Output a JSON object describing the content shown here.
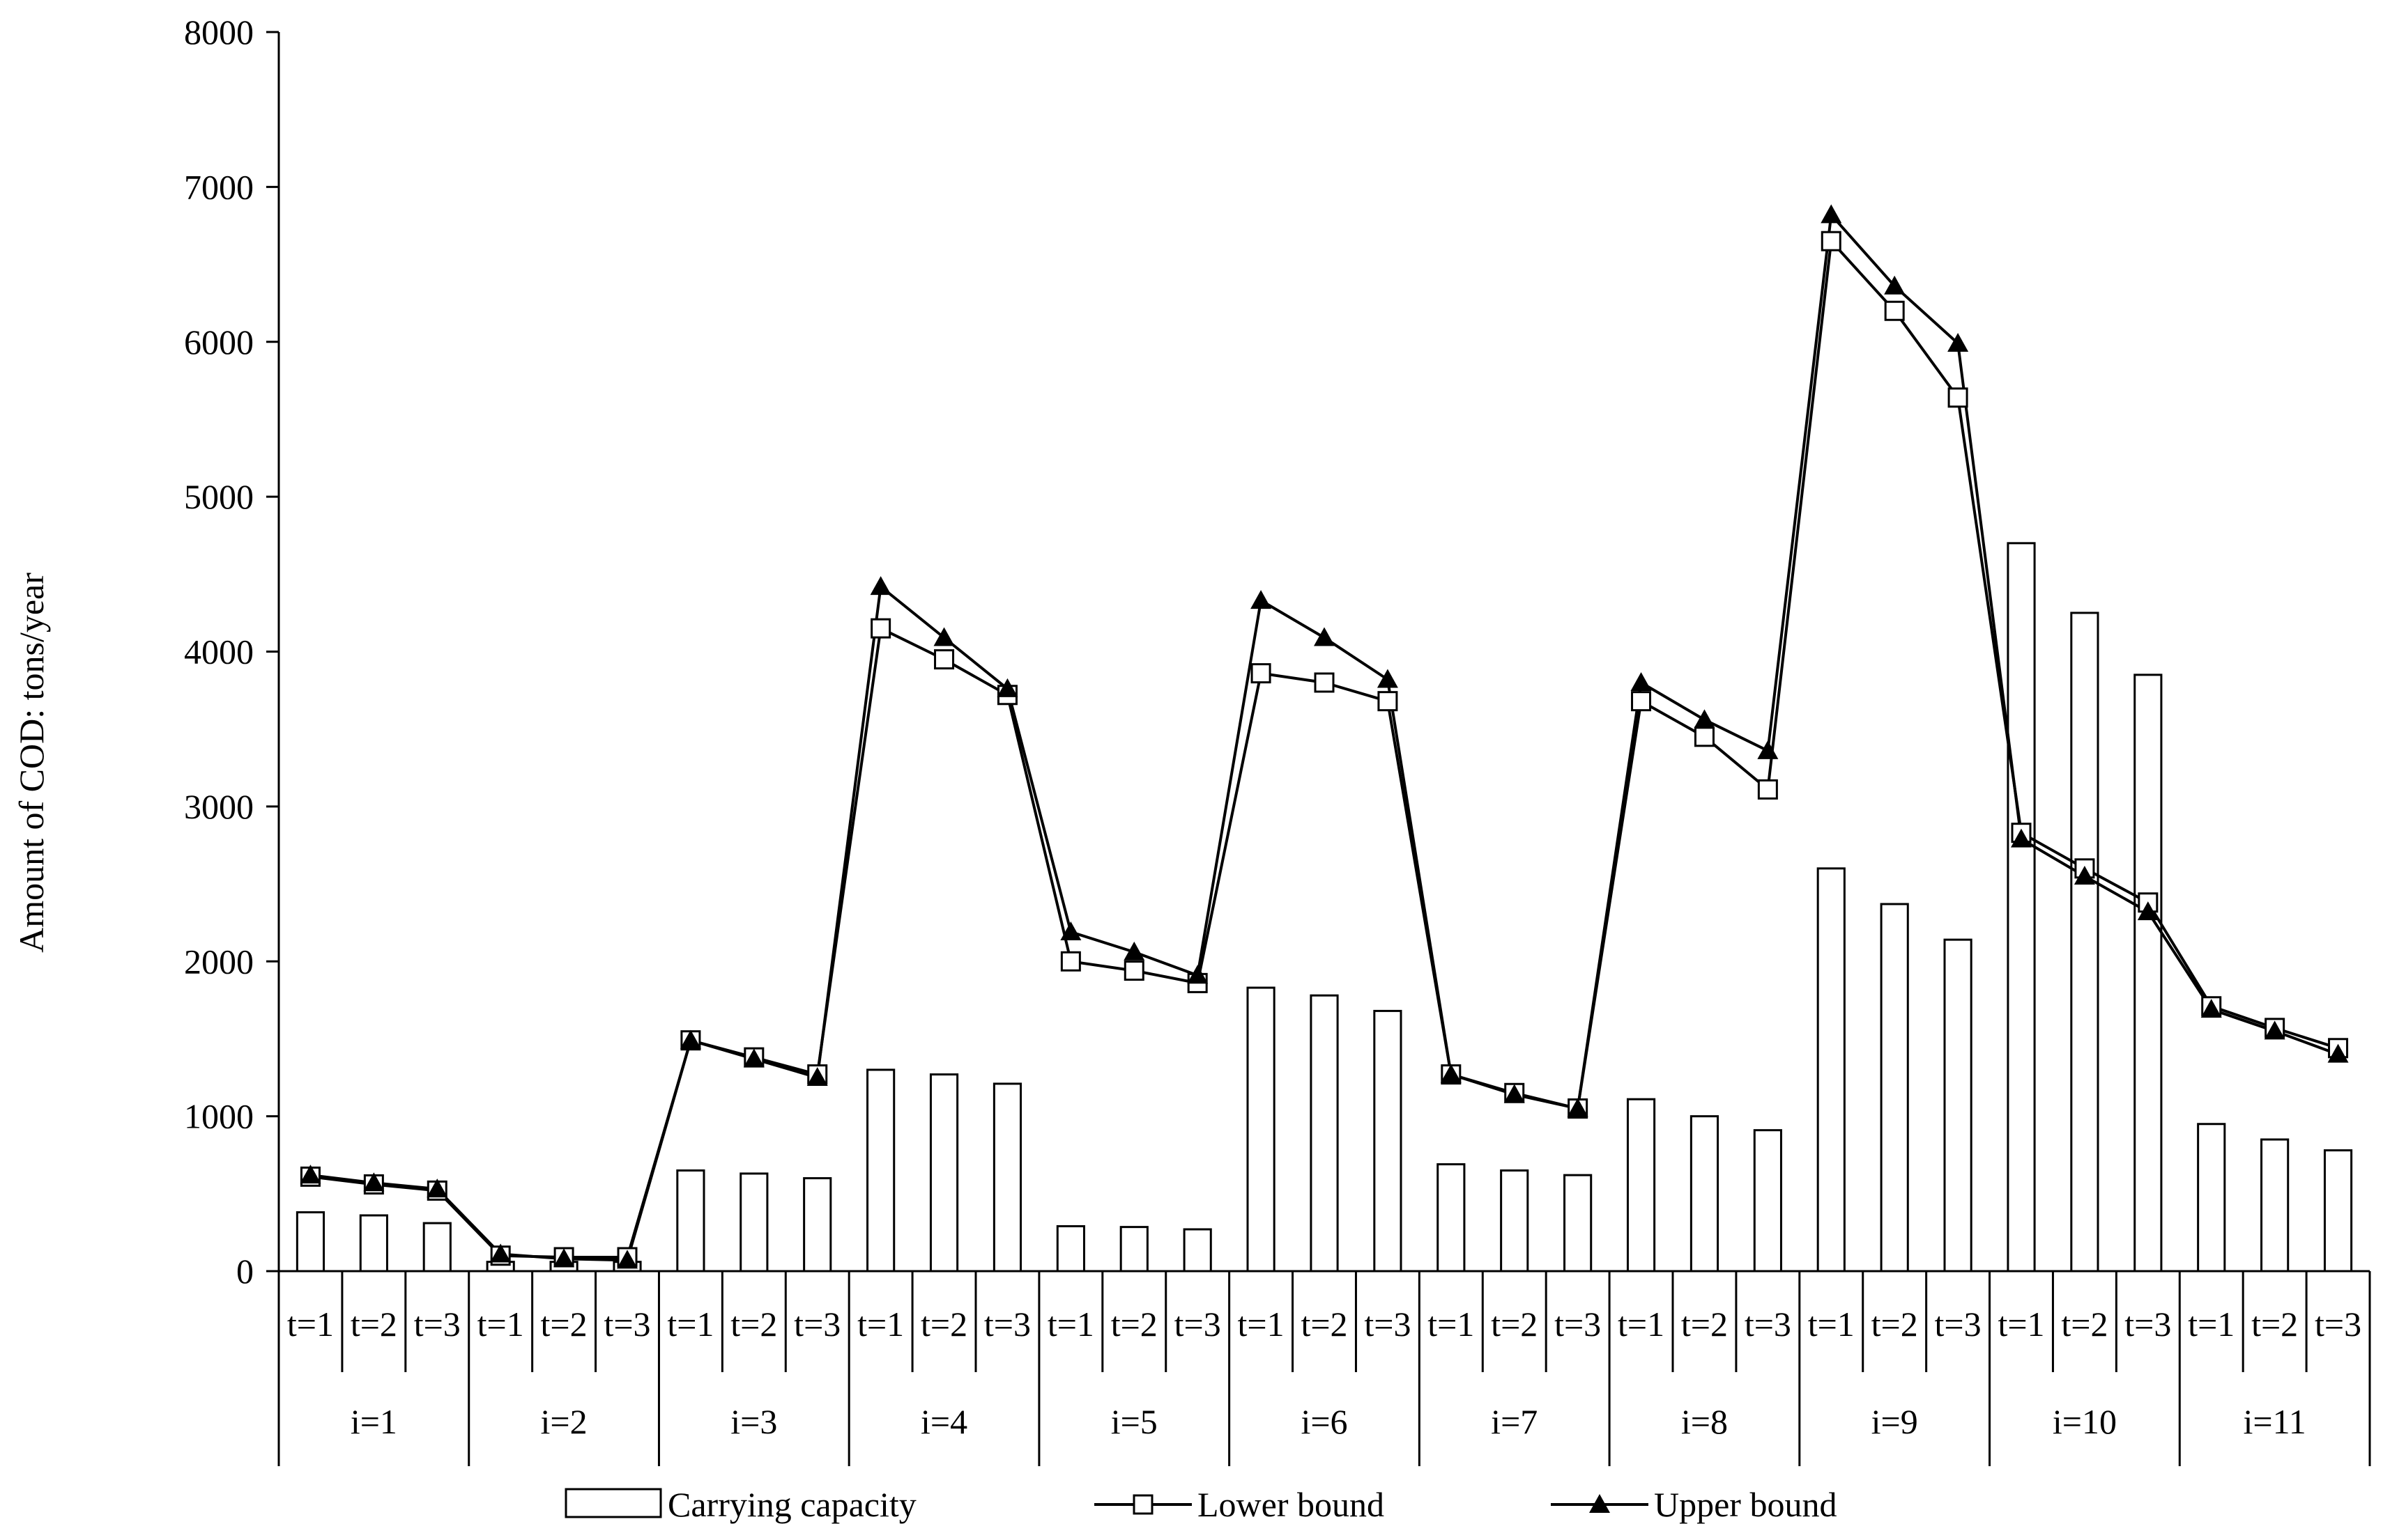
{
  "chart_data": {
    "type": "bar",
    "ylabel": "Amount of COD: tons/year",
    "ylim": [
      0,
      8000
    ],
    "yticks": [
      0,
      1000,
      2000,
      3000,
      4000,
      5000,
      6000,
      7000,
      8000
    ],
    "grid": false,
    "legend_position": "bottom",
    "groups": [
      "i=1",
      "i=2",
      "i=3",
      "i=4",
      "i=5",
      "i=6",
      "i=7",
      "i=8",
      "i=9",
      "i=10",
      "i=11"
    ],
    "periods": [
      "t=1",
      "t=2",
      "t=3"
    ],
    "series": [
      {
        "name": "Carrying capacity",
        "kind": "bar",
        "values": [
          380,
          360,
          310,
          60,
          60,
          60,
          650,
          630,
          600,
          1300,
          1270,
          1210,
          290,
          285,
          270,
          1830,
          1780,
          1680,
          690,
          650,
          620,
          1110,
          1000,
          910,
          2600,
          2370,
          2140,
          4700,
          4250,
          3850,
          950,
          850,
          780
        ]
      },
      {
        "name": "Lower bound",
        "kind": "line",
        "marker": "open-square",
        "values": [
          610,
          560,
          520,
          100,
          90,
          90,
          1490,
          1380,
          1270,
          4150,
          3950,
          3720,
          2000,
          1940,
          1860,
          3860,
          3800,
          3680,
          1270,
          1150,
          1050,
          3680,
          3450,
          3110,
          6650,
          6200,
          5640,
          2830,
          2600,
          2380,
          1710,
          1570,
          1440
        ]
      },
      {
        "name": "Upper bound",
        "kind": "line",
        "marker": "filled-triangle",
        "values": [
          620,
          570,
          530,
          110,
          80,
          70,
          1490,
          1370,
          1250,
          4420,
          4090,
          3760,
          2190,
          2060,
          1910,
          4330,
          4090,
          3820,
          1270,
          1140,
          1050,
          3800,
          3560,
          3360,
          6820,
          6360,
          5990,
          2790,
          2550,
          2320,
          1690,
          1550,
          1400
        ]
      }
    ]
  }
}
